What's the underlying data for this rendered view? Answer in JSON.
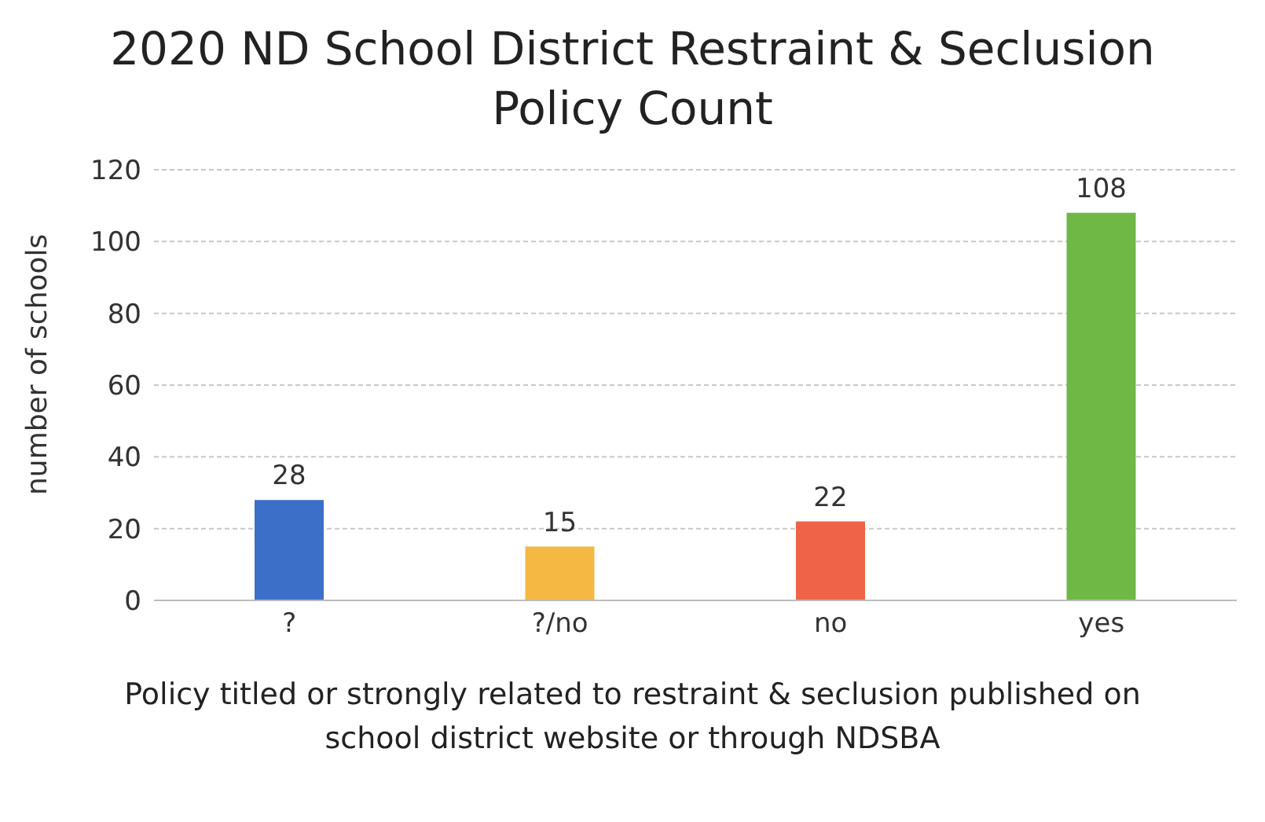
{
  "chart_data": {
    "type": "bar",
    "title": "2020 ND School District Restraint & Seclusion Policy Count",
    "xlabel": "Policy titled or strongly related to restraint & seclusion published on school district website or through NDSBA",
    "ylabel": "number of schools",
    "categories": [
      "?",
      "?/no",
      "no",
      "yes"
    ],
    "values": [
      28,
      15,
      22,
      108
    ],
    "colors": [
      "#3b6fc8",
      "#f4b843",
      "#ef6448",
      "#70b845"
    ],
    "ylim": [
      0,
      120
    ],
    "yticks": [
      0,
      20,
      40,
      60,
      80,
      100,
      120
    ],
    "grid": "y",
    "data_labels": true
  }
}
